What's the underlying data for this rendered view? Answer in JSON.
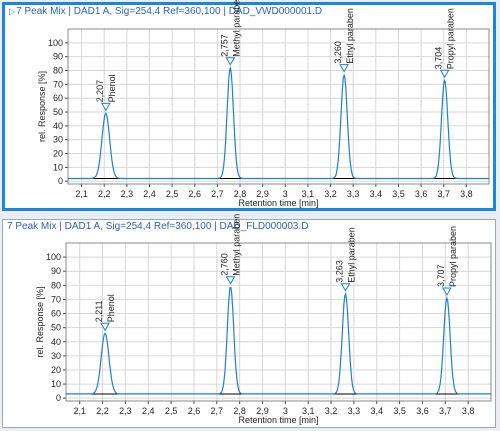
{
  "chart_data": [
    {
      "type": "line",
      "title": "7 Peak Mix | DAD1 A, Sig=254,4 Ref=360,100 | DAD_VWD000001.D",
      "title_marker": "▷",
      "xlabel": "Retention time [min]",
      "ylabel": "rel. Response [%]",
      "xlim": [
        2.04,
        3.9
      ],
      "ylim": [
        -2,
        110
      ],
      "xticks": [
        "2,1",
        "2,2",
        "2,3",
        "2,4",
        "2,5",
        "2,6",
        "2,7",
        "2,8",
        "2,9",
        "3",
        "3,1",
        "3,2",
        "3,3",
        "3,4",
        "3,5",
        "3,6",
        "3,7",
        "3,8"
      ],
      "yticks": [
        "0",
        "10",
        "20",
        "30",
        "40",
        "50",
        "60",
        "70",
        "80",
        "90",
        "100"
      ],
      "grid": true,
      "baseline": 2,
      "peaks": [
        {
          "time": "2,207",
          "name": "Phenol",
          "rt": 2.207,
          "height": 47,
          "width": 0.017
        },
        {
          "time": "2,757",
          "name": "Methyl paraben",
          "rt": 2.757,
          "height": 80,
          "width": 0.014
        },
        {
          "time": "3,260",
          "name": "Ethyl paraben",
          "rt": 3.26,
          "height": 75,
          "width": 0.014
        },
        {
          "time": "3,704",
          "name": "Propyl paraben",
          "rt": 3.704,
          "height": 71,
          "width": 0.014
        }
      ]
    },
    {
      "type": "line",
      "title": "7 Peak Mix | DAD1 A, Sig=254,4 Ref=360,100 | DAD_FLD000003.D",
      "title_marker": "",
      "xlabel": "Retention time [min]",
      "ylabel": "rel. Response [%]",
      "xlim": [
        2.04,
        3.9
      ],
      "ylim": [
        -2,
        110
      ],
      "xticks": [
        "2,1",
        "2,2",
        "2,3",
        "2,4",
        "2,5",
        "2,6",
        "2,7",
        "2,8",
        "2,9",
        "3",
        "3,1",
        "3,2",
        "3,3",
        "3,4",
        "3,5",
        "3,6",
        "3,7",
        "3,8"
      ],
      "yticks": [
        "0",
        "10",
        "20",
        "30",
        "40",
        "50",
        "60",
        "70",
        "80",
        "90",
        "100"
      ],
      "grid": true,
      "baseline": 3,
      "peaks": [
        {
          "time": "2,211",
          "name": "Phenol",
          "rt": 2.211,
          "height": 43,
          "width": 0.017
        },
        {
          "time": "2,760",
          "name": "Methyl paraben",
          "rt": 2.76,
          "height": 76,
          "width": 0.014
        },
        {
          "time": "3,263",
          "name": "Ethyl paraben",
          "rt": 3.263,
          "height": 71,
          "width": 0.014
        },
        {
          "time": "3,707",
          "name": "Propyl paraben",
          "rt": 3.707,
          "height": 68,
          "width": 0.014
        }
      ]
    }
  ],
  "colors": {
    "trace": "#1f7fd6",
    "baseline": "#000000",
    "marker": "#1f7fd6",
    "grid": "#d6d6d6",
    "frame": "#1a86e0"
  }
}
